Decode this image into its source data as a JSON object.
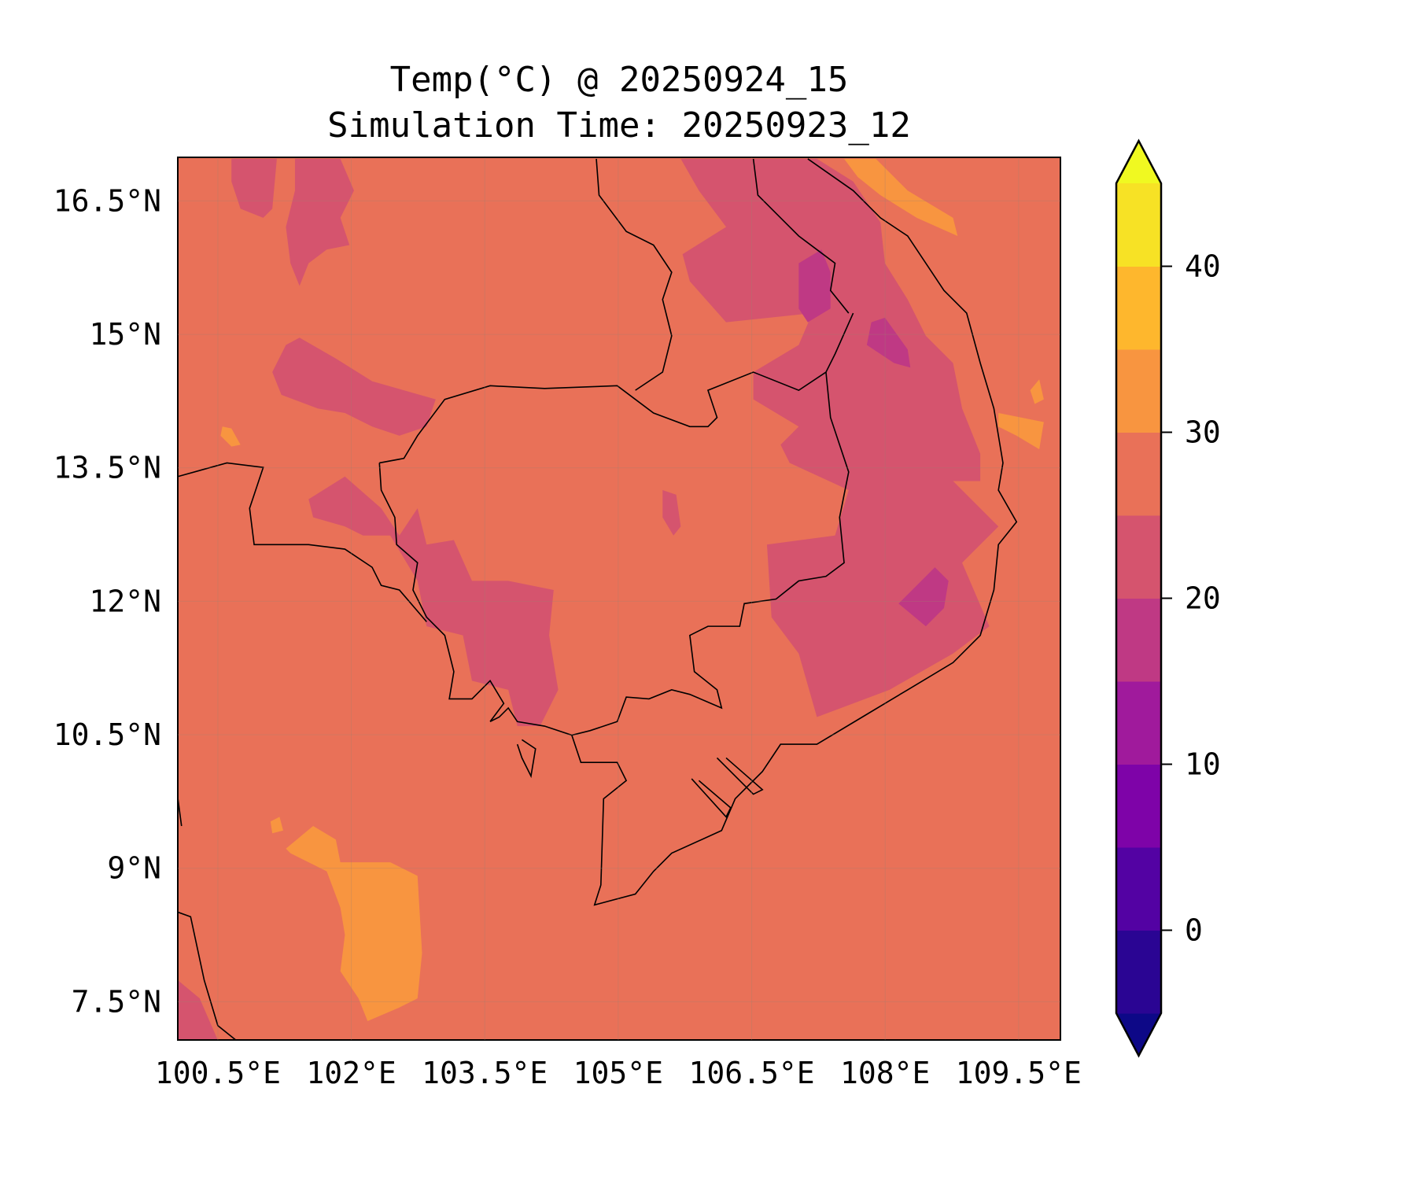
{
  "title": {
    "line1": "Temp(°C) @ 20250924_15",
    "line2": "Simulation Time: 20250923_12"
  },
  "map": {
    "lon_range": [
      100.05,
      109.97
    ],
    "lat_range": [
      7.07,
      16.99
    ],
    "lon_ticks": [
      {
        "value": 100.5,
        "label": "100.5°E"
      },
      {
        "value": 102,
        "label": "102°E"
      },
      {
        "value": 103.5,
        "label": "103.5°E"
      },
      {
        "value": 105,
        "label": "105°E"
      },
      {
        "value": 106.5,
        "label": "106.5°E"
      },
      {
        "value": 108,
        "label": "108°E"
      },
      {
        "value": 109.5,
        "label": "109.5°E"
      }
    ],
    "lat_ticks": [
      {
        "value": 16.5,
        "label": "16.5°N"
      },
      {
        "value": 15,
        "label": "15°N"
      },
      {
        "value": 13.5,
        "label": "13.5°N"
      },
      {
        "value": 12,
        "label": "12°N"
      },
      {
        "value": 10.5,
        "label": "10.5°N"
      },
      {
        "value": 9,
        "label": "9°N"
      },
      {
        "value": 7.5,
        "label": "7.5°N"
      }
    ],
    "field_colors": {
      "c15_20": "#bf3984",
      "c20_25": "#d5546e",
      "c25_30": "#e97158",
      "c30_35": "#f89540"
    }
  },
  "colorbar": {
    "levels": [
      -5,
      0,
      5,
      10,
      15,
      20,
      25,
      30,
      35,
      40,
      45
    ],
    "colors": [
      "#2a0593",
      "#5302a3",
      "#7e03a8",
      "#a01a9c",
      "#bf3984",
      "#d5546e",
      "#e97158",
      "#f89540",
      "#feb72d",
      "#f7e225"
    ],
    "under_color": "#0d0887",
    "over_color": "#f0f921",
    "ticks": [
      {
        "value": 0,
        "label": "0"
      },
      {
        "value": 10,
        "label": "10"
      },
      {
        "value": 20,
        "label": "20"
      },
      {
        "value": 30,
        "label": "30"
      },
      {
        "value": 40,
        "label": "40"
      }
    ]
  }
}
